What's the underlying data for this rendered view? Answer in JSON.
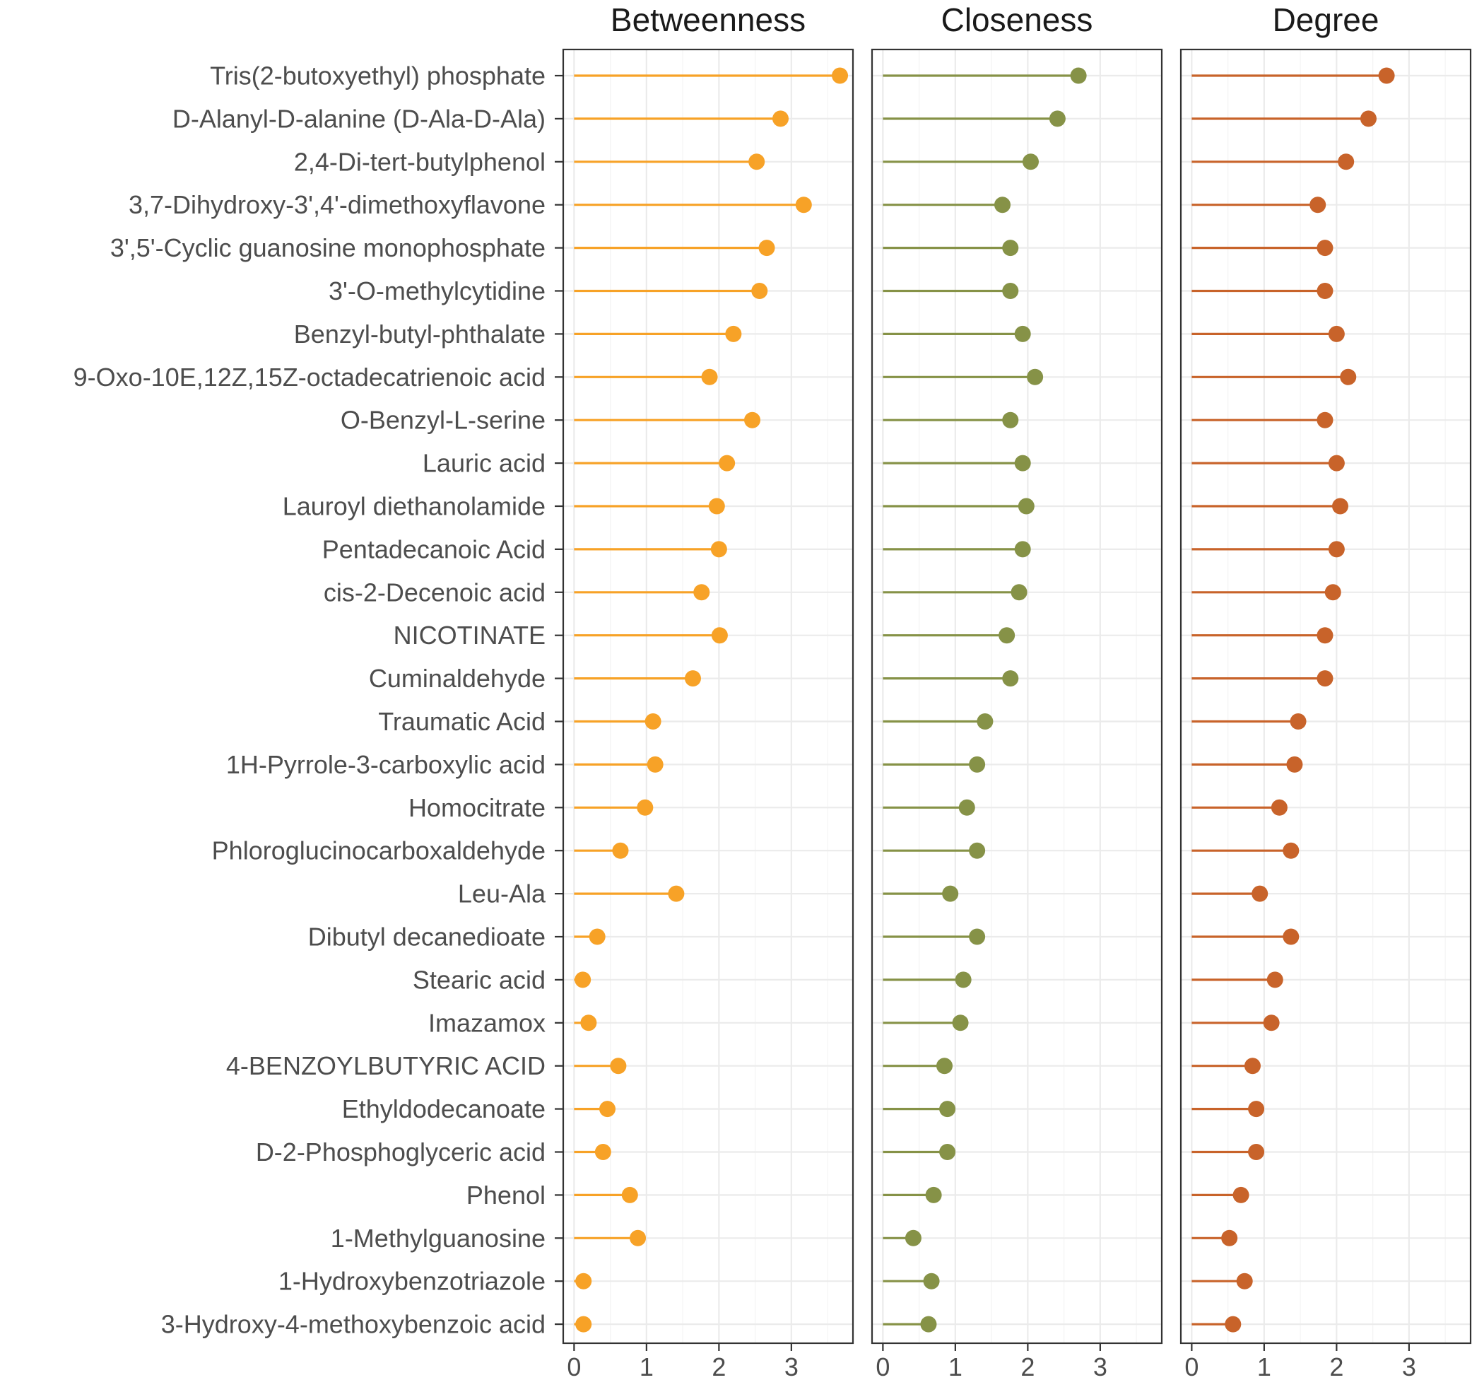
{
  "chart_data": {
    "type": "lollipop",
    "categories": [
      "Tris(2-butoxyethyl) phosphate",
      "D-Alanyl-D-alanine (D-Ala-D-Ala)",
      "2,4-Di-tert-butylphenol",
      "3,7-Dihydroxy-3',4'-dimethoxyflavone",
      "3',5'-Cyclic guanosine monophosphate",
      "3'-O-methylcytidine",
      "Benzyl-butyl-phthalate",
      "9-Oxo-10E,12Z,15Z-octadecatrienoic acid",
      "O-Benzyl-L-serine",
      "Lauric acid",
      "Lauroyl diethanolamide",
      "Pentadecanoic Acid",
      "cis-2-Decenoic acid",
      "NICOTINATE",
      "Cuminaldehyde",
      "Traumatic Acid",
      "1H-Pyrrole-3-carboxylic acid",
      "Homocitrate",
      "Phloroglucinocarboxaldehyde",
      "Leu-Ala",
      "Dibutyl decanedioate",
      "Stearic acid",
      "Imazamox",
      "4-BENZOYLBUTYRIC ACID",
      "Ethyldodecanoate",
      "D-2-Phosphoglyceric acid",
      "Phenol",
      "1-Methylguanosine",
      "1-Hydroxybenzotriazole",
      "3-Hydroxy-4-methoxybenzoic acid"
    ],
    "x_ticks": [
      "0",
      "1",
      "2",
      "3"
    ],
    "xlim": [
      -0.15,
      3.85
    ],
    "grid": true,
    "legend": "none",
    "series": [
      {
        "name": "Betweenness",
        "color": "#f7a227",
        "values": [
          3.67,
          2.85,
          2.52,
          3.17,
          2.66,
          2.56,
          2.2,
          1.87,
          2.46,
          2.11,
          1.97,
          2.0,
          1.76,
          2.01,
          1.64,
          1.09,
          1.12,
          0.98,
          0.64,
          1.41,
          0.32,
          0.12,
          0.2,
          0.61,
          0.46,
          0.4,
          0.77,
          0.88,
          0.13,
          0.13
        ]
      },
      {
        "name": "Closeness",
        "color": "#869247",
        "values": [
          2.7,
          2.41,
          2.04,
          1.65,
          1.76,
          1.76,
          1.93,
          2.1,
          1.76,
          1.93,
          1.98,
          1.93,
          1.88,
          1.71,
          1.76,
          1.41,
          1.3,
          1.16,
          1.3,
          0.93,
          1.3,
          1.11,
          1.07,
          0.85,
          0.89,
          0.89,
          0.7,
          0.42,
          0.67,
          0.63
        ]
      },
      {
        "name": "Degree",
        "color": "#c8632a",
        "values": [
          2.69,
          2.44,
          2.13,
          1.74,
          1.84,
          1.84,
          2.0,
          2.16,
          1.84,
          2.0,
          2.05,
          2.0,
          1.95,
          1.84,
          1.84,
          1.47,
          1.42,
          1.21,
          1.37,
          0.94,
          1.37,
          1.15,
          1.1,
          0.84,
          0.89,
          0.89,
          0.68,
          0.52,
          0.73,
          0.57
        ]
      }
    ]
  }
}
